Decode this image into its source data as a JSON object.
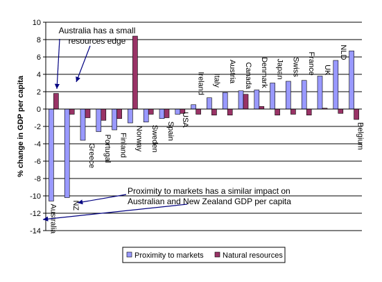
{
  "chart_data": {
    "type": "bar",
    "ylabel": "% change in GDP per capita",
    "ylim": [
      -14,
      10
    ],
    "ytick_step": 2,
    "grid": true,
    "legend_position": "bottom-center",
    "categories": [
      "Australia",
      "NZ",
      "Greece",
      "Portugal",
      "Finland",
      "Norway",
      "Sweden",
      "Spain",
      "USA",
      "Ireland",
      "Italy",
      "Austria",
      "Canada",
      "Denmark",
      "Japan",
      "Swiss",
      "France",
      "UK",
      "NLD",
      "Belgium"
    ],
    "series": [
      {
        "name": "Proximity to markets",
        "color": "#9999ff",
        "values": [
          -10.6,
          -10.2,
          -3.6,
          -2.6,
          -2.4,
          -1.6,
          -1.5,
          -1.1,
          -0.6,
          0.5,
          1.3,
          1.9,
          2.1,
          2.2,
          3.0,
          3.2,
          3.3,
          3.8,
          5.6,
          6.7
        ]
      },
      {
        "name": "Natural resources",
        "color": "#993366",
        "values": [
          1.8,
          -0.6,
          -1.0,
          -1.3,
          -1.1,
          8.4,
          -0.6,
          -1.0,
          -0.5,
          -0.6,
          -0.7,
          -0.7,
          1.7,
          0.3,
          -0.7,
          -0.6,
          -0.7,
          0.1,
          -0.5,
          -1.2
        ]
      }
    ],
    "annotations": [
      {
        "lines": [
          "Australia has a small",
          "resources edge"
        ]
      },
      {
        "lines": [
          "Proximity to markets has a similar impact on",
          "Australian and New Zealand GDP per capita"
        ]
      }
    ]
  },
  "colors": {
    "axis": "#000000",
    "grid": "#000000",
    "arrow": "#000080"
  }
}
